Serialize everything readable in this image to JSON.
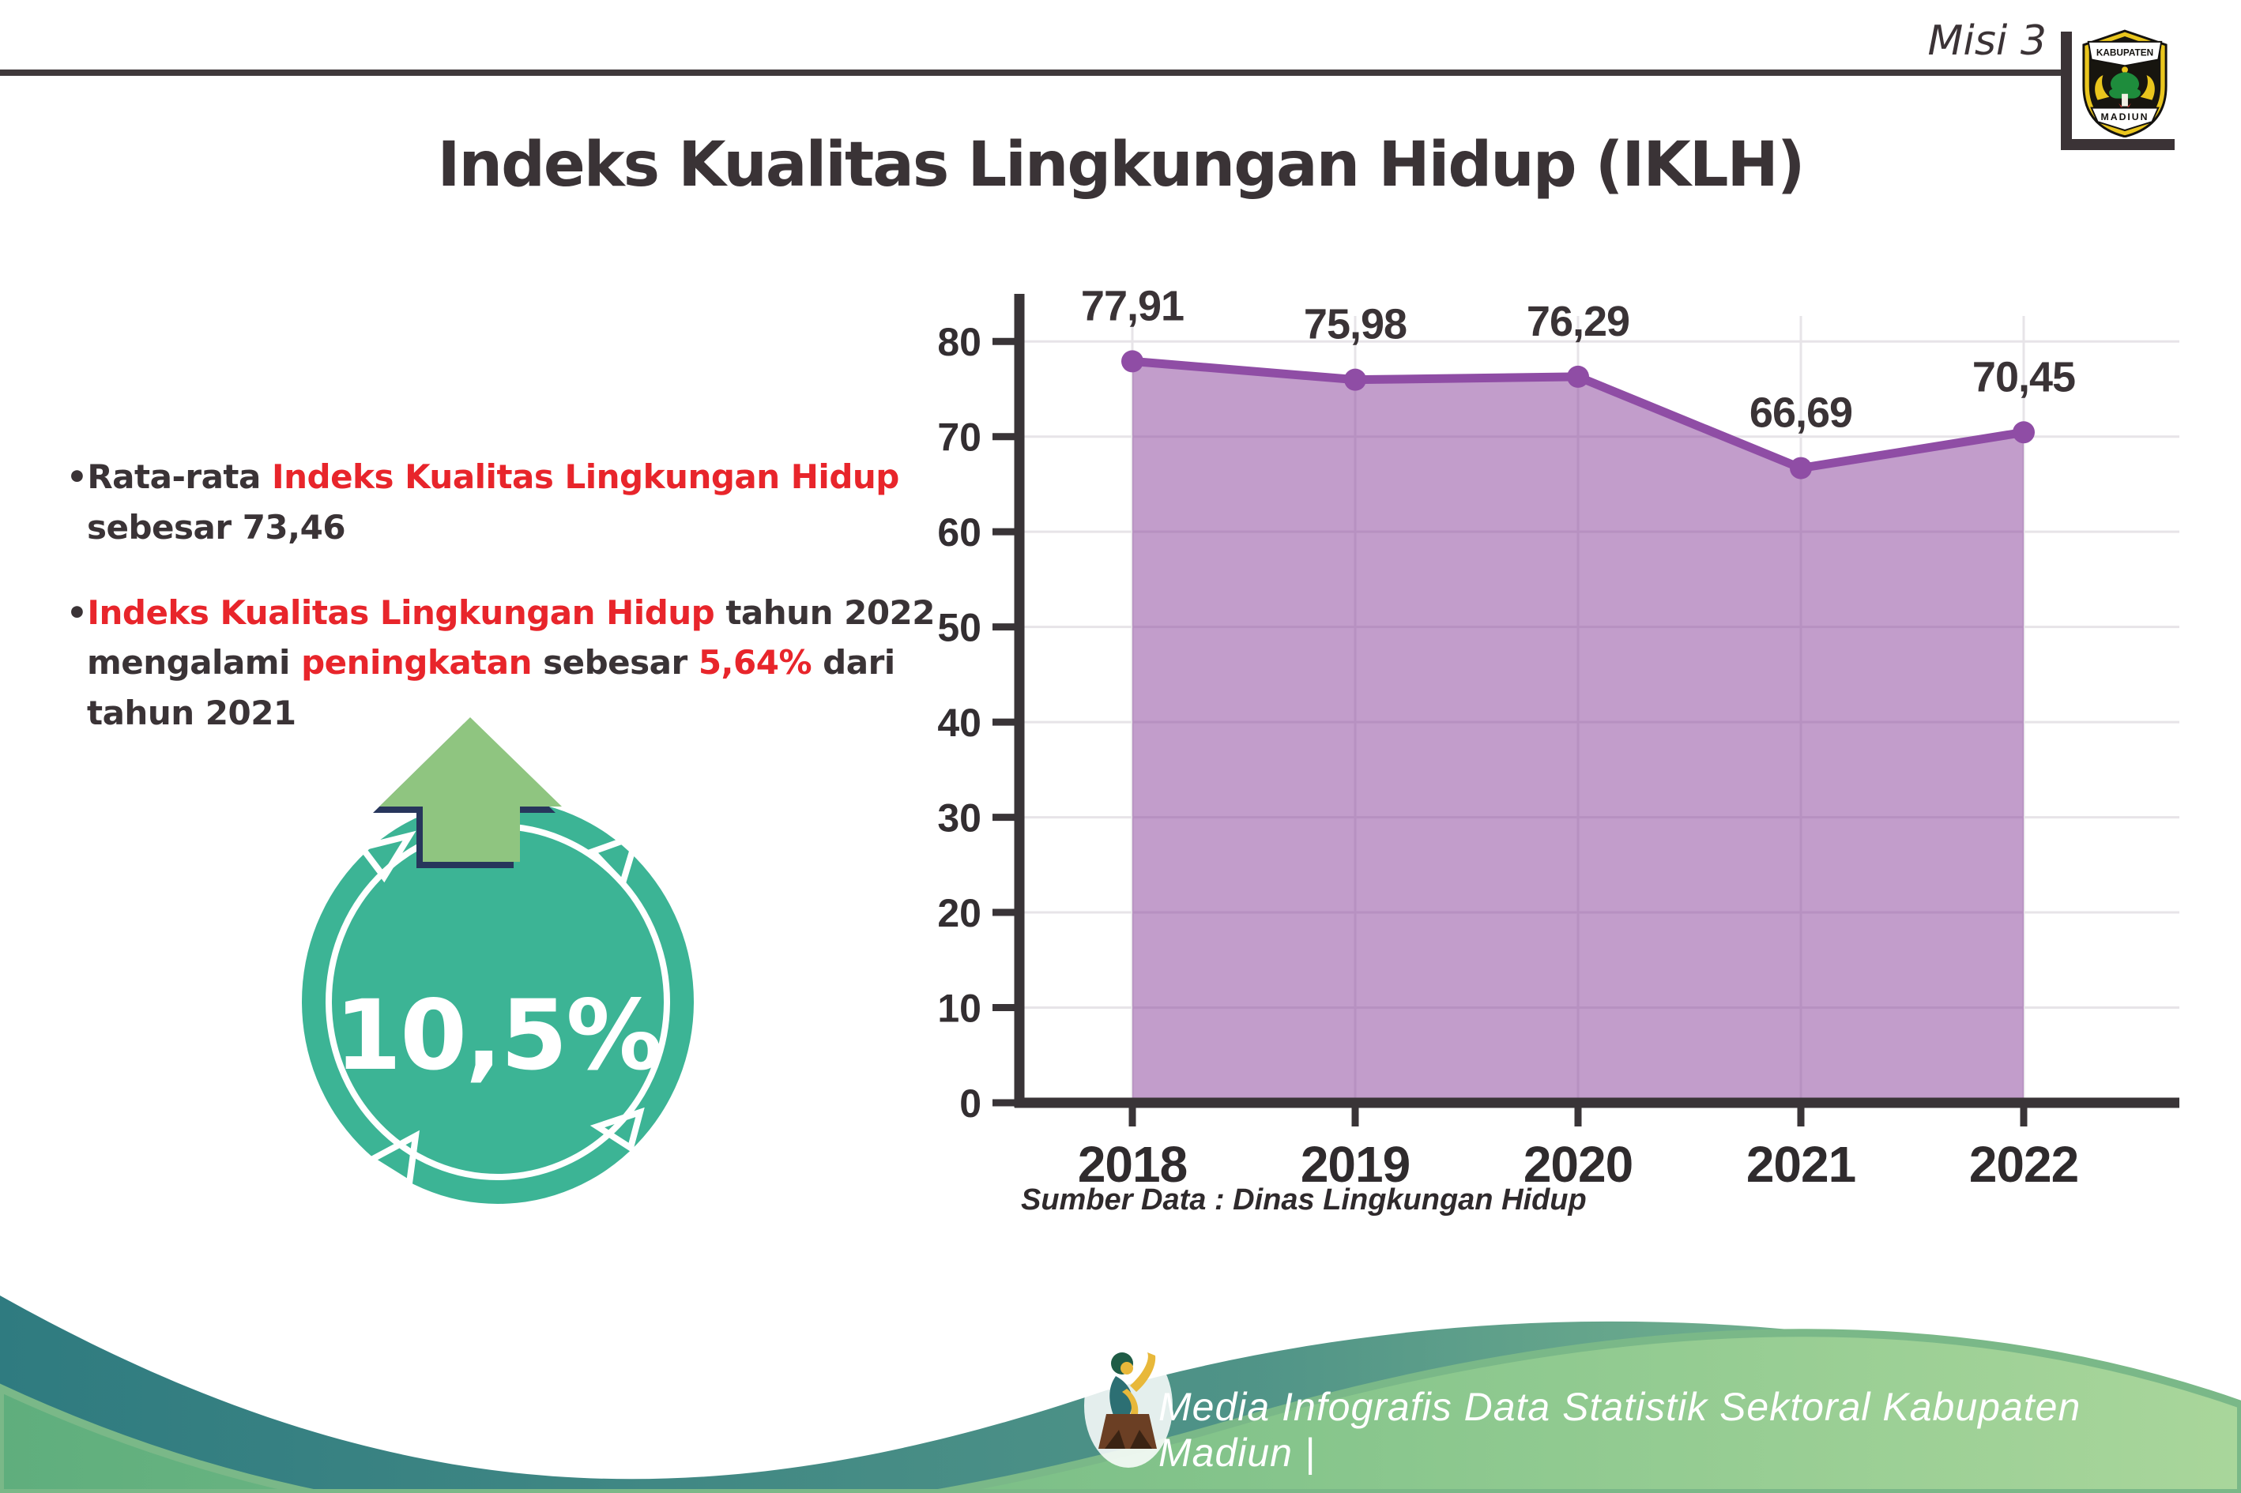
{
  "header": {
    "misi": "Misi 3",
    "title": "Indeks Kualitas Lingkungan Hidup (IKLH)",
    "logo": {
      "top": "KABUPATEN",
      "bottom": "MADIUN"
    }
  },
  "bullets": [
    {
      "parts": [
        {
          "t": "•Rata-rata ",
          "c": "dark"
        },
        {
          "t": "Indeks Kualitas Lingkungan Hidup",
          "c": "red"
        },
        {
          "t": "\nsebesar 73,46",
          "c": "dark"
        }
      ]
    },
    {
      "parts": [
        {
          "t": "•",
          "c": "dark"
        },
        {
          "t": "Indeks Kualitas Lingkungan Hidup",
          "c": "red"
        },
        {
          "t": " tahun 2022\nmengalami ",
          "c": "dark"
        },
        {
          "t": "peningkatan",
          "c": "red"
        },
        {
          "t": " sebesar ",
          "c": "dark"
        },
        {
          "t": "5,64%",
          "c": "red"
        },
        {
          "t": " dari\ntahun 2021",
          "c": "dark"
        }
      ]
    }
  ],
  "badge": {
    "value": "10,5%"
  },
  "chart_data": {
    "type": "area",
    "title": "",
    "xlabel": "",
    "ylabel": "",
    "categories": [
      "2018",
      "2019",
      "2020",
      "2021",
      "2022"
    ],
    "values": [
      77.91,
      75.98,
      76.29,
      66.69,
      70.45
    ],
    "value_labels": [
      "77,91",
      "75,98",
      "76,29",
      "66,69",
      "70,45"
    ],
    "yticks": [
      0,
      10,
      20,
      30,
      40,
      50,
      60,
      70,
      80
    ],
    "ylim": [
      0,
      85
    ],
    "grid": "on",
    "legend": "none",
    "source": "Sumber Data : Dinas Lingkungan Hidup",
    "colors": {
      "line": "#8f4da5",
      "fill": "rgba(143,77,160,0.55)",
      "axis": "#393437",
      "grid": "#e7e4e8"
    }
  },
  "footer": {
    "credit": "Media Infografis Data Statistik Sektoral Kabupaten Madiun |"
  }
}
